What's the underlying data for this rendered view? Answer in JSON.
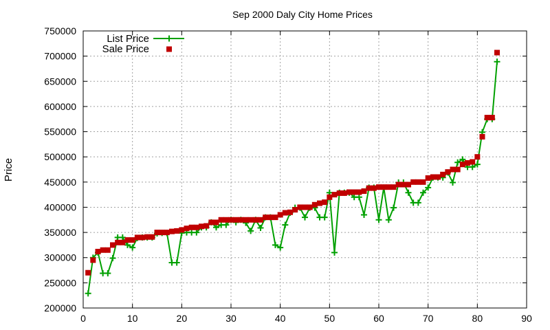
{
  "chart_data": {
    "type": "scatter",
    "title": "Sep 2000 Daly City Home Prices",
    "xlabel": "",
    "ylabel": "Price",
    "xlim": [
      0,
      90
    ],
    "ylim": [
      200000,
      750000
    ],
    "xticks": [
      0,
      10,
      20,
      30,
      40,
      50,
      60,
      70,
      80,
      90
    ],
    "yticks": [
      200000,
      250000,
      300000,
      350000,
      400000,
      450000,
      500000,
      550000,
      600000,
      650000,
      700000,
      750000
    ],
    "grid": true,
    "legend_position": "top-left",
    "series": [
      {
        "name": "List Price",
        "style": "linespoints",
        "color": "#00a000",
        "x": [
          1,
          2,
          3,
          4,
          5,
          6,
          7,
          8,
          9,
          10,
          11,
          12,
          13,
          14,
          15,
          16,
          17,
          18,
          19,
          20,
          21,
          22,
          23,
          24,
          25,
          26,
          27,
          28,
          29,
          30,
          31,
          32,
          33,
          34,
          35,
          36,
          37,
          38,
          39,
          40,
          41,
          42,
          43,
          44,
          45,
          46,
          47,
          48,
          49,
          50,
          51,
          52,
          53,
          54,
          55,
          56,
          57,
          58,
          59,
          60,
          61,
          62,
          63,
          64,
          65,
          66,
          67,
          68,
          69,
          70,
          71,
          72,
          73,
          74,
          75,
          76,
          77,
          78,
          79,
          80,
          81,
          82,
          83,
          84
        ],
        "y": [
          229000,
          300000,
          310000,
          269000,
          269000,
          299000,
          340000,
          340000,
          325000,
          320000,
          339000,
          340000,
          340000,
          340000,
          348000,
          349000,
          349000,
          290000,
          290000,
          349000,
          350000,
          350000,
          350000,
          360000,
          360000,
          370000,
          360000,
          365000,
          365000,
          375000,
          370000,
          375000,
          369000,
          353000,
          375000,
          359000,
          380000,
          380000,
          325000,
          320000,
          365000,
          389000,
          399000,
          399000,
          380000,
          399000,
          399000,
          380000,
          380000,
          429000,
          310000,
          429000,
          429000,
          429000,
          420000,
          420000,
          385000,
          439000,
          439000,
          375000,
          439000,
          375000,
          399000,
          449000,
          449000,
          429000,
          409000,
          409000,
          429000,
          439000,
          459000,
          459000,
          459000,
          469000,
          449000,
          489000,
          495000,
          480000,
          480000,
          485000,
          549000,
          575000,
          575000,
          689000
        ]
      },
      {
        "name": "Sale Price",
        "style": "points",
        "color": "#c00000",
        "x": [
          1,
          2,
          3,
          4,
          5,
          6,
          7,
          8,
          9,
          10,
          11,
          12,
          13,
          14,
          15,
          16,
          17,
          18,
          19,
          20,
          21,
          22,
          23,
          24,
          25,
          26,
          27,
          28,
          29,
          30,
          31,
          32,
          33,
          34,
          35,
          36,
          37,
          38,
          39,
          40,
          41,
          42,
          43,
          44,
          45,
          46,
          47,
          48,
          49,
          50,
          51,
          52,
          53,
          54,
          55,
          56,
          57,
          58,
          59,
          60,
          61,
          62,
          63,
          64,
          65,
          66,
          67,
          68,
          69,
          70,
          71,
          72,
          73,
          74,
          75,
          76,
          77,
          78,
          79,
          80,
          81,
          82,
          83,
          84
        ],
        "y": [
          270000,
          295000,
          312000,
          315000,
          315000,
          325000,
          330000,
          330000,
          335000,
          335000,
          340000,
          340000,
          341000,
          341000,
          350000,
          350000,
          350000,
          352000,
          353000,
          355000,
          358000,
          360000,
          360000,
          362000,
          363000,
          370000,
          370000,
          375000,
          375000,
          375000,
          375000,
          375000,
          375000,
          375000,
          375000,
          375000,
          380000,
          380000,
          380000,
          385000,
          389000,
          390000,
          395000,
          400000,
          400000,
          400000,
          405000,
          408000,
          410000,
          420000,
          425000,
          428000,
          428000,
          430000,
          430000,
          430000,
          432000,
          438000,
          438000,
          440000,
          440000,
          440000,
          440000,
          445000,
          445000,
          445000,
          450000,
          450000,
          450000,
          458000,
          460000,
          460000,
          465000,
          470000,
          475000,
          475000,
          485000,
          488000,
          490000,
          500000,
          540000,
          578000,
          578000,
          707000
        ]
      }
    ]
  }
}
